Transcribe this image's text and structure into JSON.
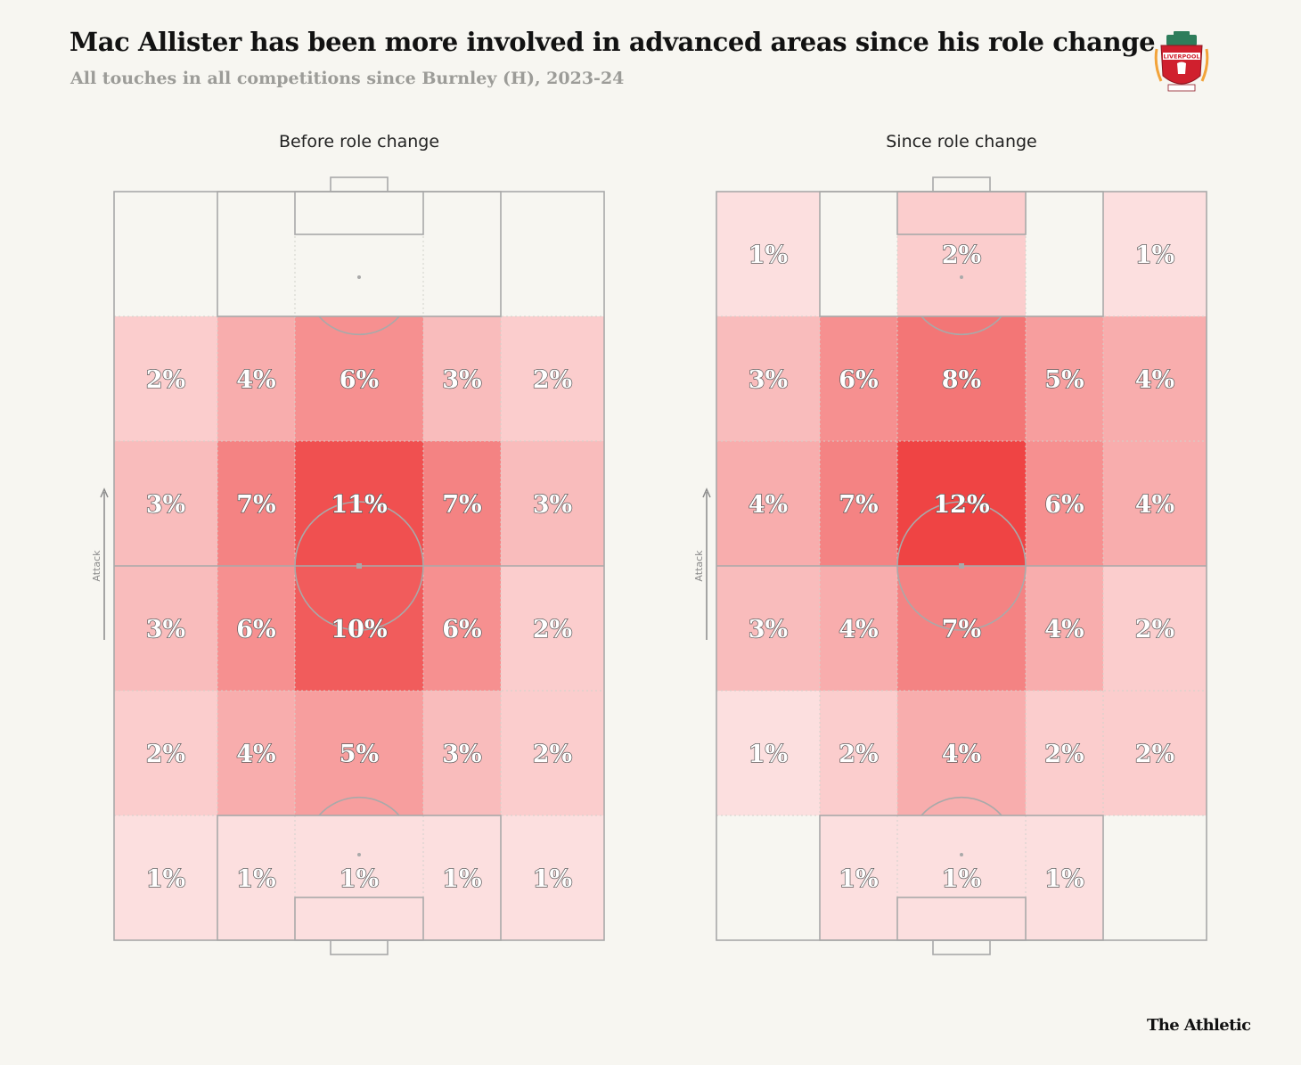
{
  "header": {
    "title": "Mac Allister has been more involved in advanced areas since his role change",
    "subtitle": "All touches in all competitions since Burnley (H), 2023-24"
  },
  "crest": {
    "name": "liverpool-crest",
    "text": "LIVERPOOL"
  },
  "brand": "The Athletic",
  "colors": {
    "background": "#f7f6f1",
    "heat_max": "#ef4444",
    "heat_min": "#ffffff",
    "pitch_line": "#a9a9a9"
  },
  "chart_data": [
    {
      "type": "heatmap",
      "title": "Before role change",
      "axis_label": "Attack",
      "value_suffix": "%",
      "rows_top_to_bottom": "attacking end to defensive end",
      "grid": [
        [
          0,
          0,
          0,
          0,
          0
        ],
        [
          2,
          4,
          6,
          3,
          2
        ],
        [
          3,
          7,
          11,
          7,
          3
        ],
        [
          3,
          6,
          10,
          6,
          2
        ],
        [
          2,
          4,
          5,
          3,
          2
        ],
        [
          1,
          1,
          1,
          1,
          1
        ]
      ]
    },
    {
      "type": "heatmap",
      "title": "Since role change",
      "axis_label": "Attack",
      "value_suffix": "%",
      "rows_top_to_bottom": "attacking end to defensive end",
      "grid": [
        [
          1,
          0,
          2,
          0,
          1
        ],
        [
          3,
          6,
          8,
          5,
          4
        ],
        [
          4,
          7,
          12,
          6,
          4
        ],
        [
          3,
          4,
          7,
          4,
          2
        ],
        [
          1,
          2,
          4,
          2,
          2
        ],
        [
          0,
          1,
          1,
          1,
          0
        ]
      ]
    }
  ]
}
